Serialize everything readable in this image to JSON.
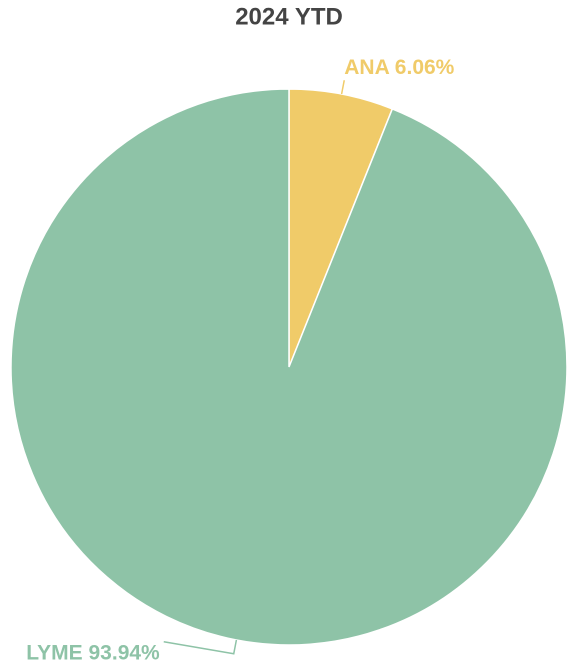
{
  "chart_data": {
    "type": "pie",
    "title": "2024 YTD",
    "categories": [
      "ANA",
      "LYME"
    ],
    "values": [
      6.06,
      93.94
    ],
    "value_labels": [
      "ANA 6.06%",
      "LYME 93.94%"
    ],
    "colors": [
      "#f0cb69",
      "#8ec3a7"
    ]
  }
}
